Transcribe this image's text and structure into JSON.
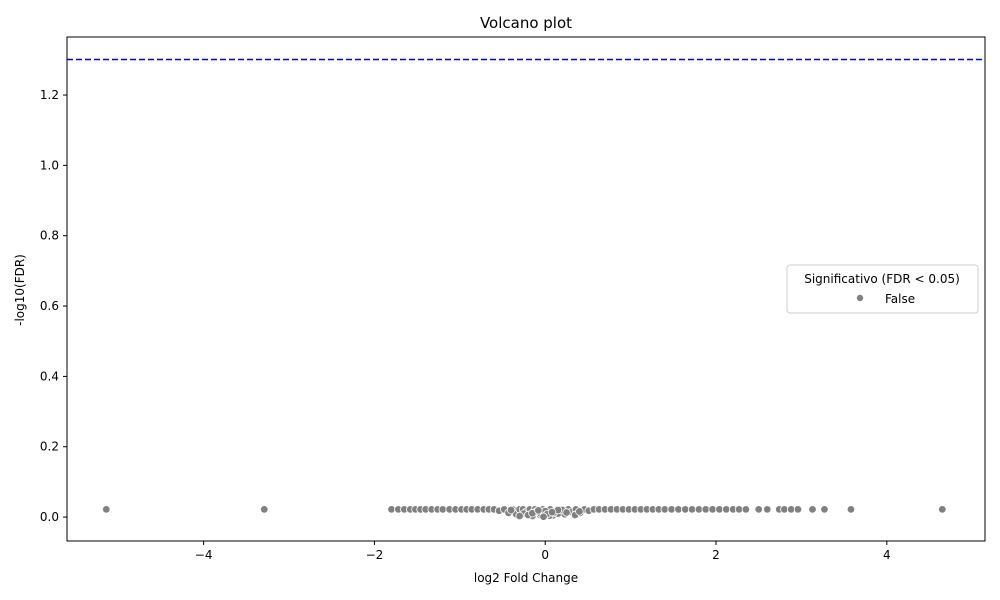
{
  "chart_data": {
    "type": "scatter",
    "title": "Volcano plot",
    "xlabel": "log2 Fold Change",
    "ylabel": "-log10(FDR)",
    "xlim": [
      -5.6,
      5.15
    ],
    "ylim": [
      -0.068,
      1.365
    ],
    "xticks": [
      -4,
      -2,
      0,
      2,
      4
    ],
    "yticks": [
      0.0,
      0.2,
      0.4,
      0.6,
      0.8,
      1.0,
      1.2
    ],
    "threshold_line": {
      "y": 1.30103,
      "color": "#0000cc",
      "style": "dashed"
    },
    "legend": {
      "title": "Significativo (FDR < 0.05)",
      "placement": "center-right",
      "entries": [
        {
          "label": "False",
          "color": "#808080"
        }
      ]
    },
    "colors": {
      "point": "#808080",
      "point_edge": "#ffffff"
    },
    "series": [
      {
        "name": "False",
        "x": [
          -5.14,
          -3.29,
          -1.8,
          -1.72,
          -1.65,
          -1.58,
          -1.52,
          -1.46,
          -1.4,
          -1.33,
          -1.26,
          -1.2,
          -1.12,
          -1.05,
          -0.98,
          -0.92,
          -0.86,
          -0.79,
          -0.72,
          -0.66,
          -0.6,
          -0.54,
          -0.48,
          -0.43,
          -0.38,
          -0.34,
          -0.3,
          -0.26,
          -0.22,
          -0.18,
          -0.15,
          -0.12,
          -0.09,
          -0.06,
          -0.03,
          0.0,
          0.03,
          0.06,
          0.09,
          0.12,
          0.15,
          0.19,
          0.23,
          0.27,
          0.31,
          0.36,
          0.41,
          0.46,
          0.51,
          0.57,
          0.63,
          0.7,
          0.77,
          0.84,
          0.91,
          0.98,
          1.05,
          1.12,
          1.19,
          1.26,
          1.33,
          1.4,
          1.48,
          1.56,
          1.64,
          1.72,
          1.8,
          1.88,
          1.96,
          2.04,
          2.12,
          2.2,
          2.27,
          2.35,
          2.5,
          2.6,
          2.74,
          2.8,
          2.88,
          2.96,
          3.13,
          3.27,
          3.58,
          4.65,
          -0.25,
          -0.1,
          0.05,
          0.2,
          0.35,
          -0.4,
          0.1,
          -0.05,
          0.0,
          0.25,
          -0.2,
          0.4,
          -0.3,
          0.15,
          -0.15,
          0.02,
          0.08,
          -0.08,
          -0.02
        ],
        "y": [
          0.022,
          0.022,
          0.022,
          0.022,
          0.022,
          0.022,
          0.022,
          0.022,
          0.022,
          0.022,
          0.022,
          0.022,
          0.022,
          0.022,
          0.022,
          0.022,
          0.022,
          0.022,
          0.022,
          0.022,
          0.022,
          0.018,
          0.022,
          0.012,
          0.022,
          0.008,
          0.022,
          0.022,
          0.015,
          0.022,
          0.003,
          0.022,
          0.014,
          0.006,
          0.022,
          0.002,
          0.012,
          0.022,
          0.005,
          0.018,
          0.01,
          0.022,
          0.008,
          0.022,
          0.015,
          0.022,
          0.012,
          0.022,
          0.018,
          0.022,
          0.022,
          0.022,
          0.022,
          0.022,
          0.022,
          0.022,
          0.022,
          0.022,
          0.022,
          0.022,
          0.022,
          0.022,
          0.022,
          0.022,
          0.022,
          0.022,
          0.022,
          0.022,
          0.022,
          0.022,
          0.022,
          0.022,
          0.022,
          0.022,
          0.022,
          0.022,
          0.022,
          0.022,
          0.022,
          0.022,
          0.022,
          0.022,
          0.022,
          0.022,
          0.01,
          0.016,
          0.004,
          0.02,
          0.006,
          0.02,
          0.012,
          0.009,
          0.017,
          0.013,
          0.006,
          0.016,
          0.003,
          0.02,
          0.011,
          0.008,
          0.014,
          0.019,
          0.001
        ]
      }
    ]
  }
}
